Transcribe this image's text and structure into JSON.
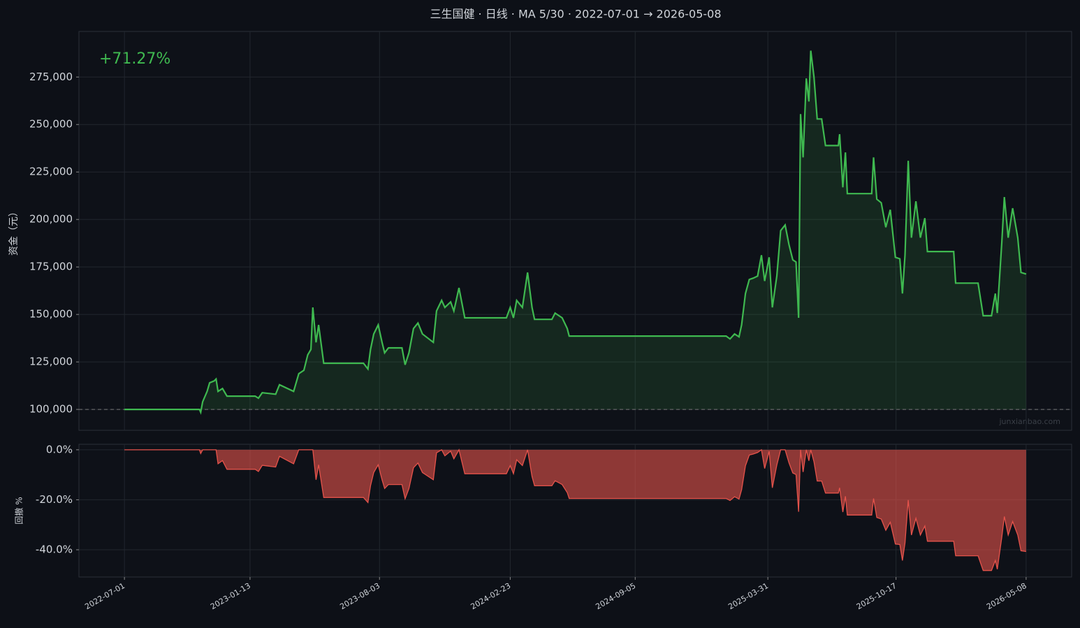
{
  "title": "三生国健 · 日线 · MA 5/30 · 2022-07-01 → 2026-05-08",
  "watermark": "junxianbao.com",
  "chart_data": [
    {
      "type": "area",
      "ylabel": "资金（元）",
      "annotation": "+71.27%",
      "color": "#3fb950",
      "baseline": 100000,
      "grid": true,
      "xlim": [
        "2022-04-21",
        "2026-07-18"
      ],
      "ylim": [
        89000,
        299000
      ],
      "yticks": [
        {
          "value": 100000,
          "label": "100,000"
        },
        {
          "value": 125000,
          "label": "125,000"
        },
        {
          "value": 150000,
          "label": "150,000"
        },
        {
          "value": 175000,
          "label": "175,000"
        },
        {
          "value": 200000,
          "label": "200,000"
        },
        {
          "value": 225000,
          "label": "225,000"
        },
        {
          "value": 250000,
          "label": "250,000"
        },
        {
          "value": 275000,
          "label": "275,000"
        }
      ],
      "x": [
        "2022-07-01",
        "2022-10-26",
        "2022-10-28",
        "2022-10-31",
        "2022-11-07",
        "2022-11-11",
        "2022-11-18",
        "2022-11-21",
        "2022-11-24",
        "2022-12-01",
        "2022-12-08",
        "2023-01-21",
        "2023-01-26",
        "2023-02-01",
        "2023-02-22",
        "2023-02-28",
        "2023-03-22",
        "2023-03-30",
        "2023-04-07",
        "2023-04-13",
        "2023-04-18",
        "2023-04-21",
        "2023-04-26",
        "2023-04-30",
        "2023-05-08",
        "2023-07-09",
        "2023-07-16",
        "2023-07-20",
        "2023-07-25",
        "2023-08-01",
        "2023-08-07",
        "2023-08-11",
        "2023-08-17",
        "2023-09-07",
        "2023-09-12",
        "2023-09-18",
        "2023-09-25",
        "2023-10-02",
        "2023-10-09",
        "2023-10-26",
        "2023-10-31",
        "2023-11-08",
        "2023-11-13",
        "2023-11-22",
        "2023-11-27",
        "2023-12-05",
        "2023-12-14",
        "2024-02-17",
        "2024-02-23",
        "2024-02-28",
        "2024-03-04",
        "2024-03-13",
        "2024-03-21",
        "2024-03-28",
        "2024-04-01",
        "2024-04-28",
        "2024-05-03",
        "2024-05-14",
        "2024-05-22",
        "2024-05-25",
        "2025-01-25",
        "2025-01-31",
        "2025-02-07",
        "2025-02-14",
        "2025-02-18",
        "2025-02-24",
        "2025-03-02",
        "2025-03-08",
        "2025-03-15",
        "2025-03-21",
        "2025-03-26",
        "2025-04-02",
        "2025-04-07",
        "2025-04-14",
        "2025-04-20",
        "2025-04-27",
        "2025-05-03",
        "2025-05-09",
        "2025-05-14",
        "2025-05-18",
        "2025-05-21",
        "2025-05-25",
        "2025-05-30",
        "2025-06-03",
        "2025-06-06",
        "2025-06-11",
        "2025-06-16",
        "2025-06-23",
        "2025-06-29",
        "2025-07-19",
        "2025-07-21",
        "2025-07-26",
        "2025-07-30",
        "2025-08-02",
        "2025-09-09",
        "2025-09-12",
        "2025-09-17",
        "2025-09-24",
        "2025-10-01",
        "2025-10-08",
        "2025-10-16",
        "2025-10-23",
        "2025-10-27",
        "2025-10-31",
        "2025-11-05",
        "2025-11-10",
        "2025-11-17",
        "2025-11-24",
        "2025-12-01",
        "2025-12-05",
        "2026-01-15",
        "2026-01-18",
        "2026-02-22",
        "2026-03-02",
        "2026-03-15",
        "2026-03-21",
        "2026-03-24",
        "2026-03-31",
        "2026-04-04",
        "2026-04-10",
        "2026-04-17",
        "2026-04-25",
        "2026-04-30",
        "2026-05-08"
      ],
      "values": [
        100000,
        100000,
        98500,
        104000,
        109500,
        114000,
        115000,
        116000,
        109500,
        111000,
        107000,
        107000,
        105900,
        108800,
        108000,
        113000,
        109500,
        118800,
        120600,
        128700,
        131600,
        153700,
        135300,
        144500,
        124300,
        124300,
        121300,
        131600,
        139700,
        144500,
        135300,
        129800,
        132400,
        132400,
        123500,
        129800,
        142600,
        145500,
        139700,
        135300,
        151800,
        157400,
        153700,
        156600,
        151800,
        164000,
        148200,
        148200,
        153700,
        148200,
        157400,
        153700,
        172100,
        153700,
        147400,
        147400,
        150700,
        148200,
        142600,
        138600,
        138600,
        137100,
        139700,
        138200,
        144500,
        161000,
        168400,
        169100,
        170200,
        181200,
        167600,
        180100,
        153700,
        170200,
        194100,
        197100,
        186800,
        178700,
        177600,
        148200,
        255500,
        232700,
        274300,
        262100,
        288900,
        275000,
        252900,
        252900,
        238900,
        238900,
        244900,
        216900,
        235300,
        213600,
        213600,
        232700,
        210700,
        208800,
        195900,
        205100,
        180100,
        179300,
        161000,
        181200,
        230900,
        190400,
        209600,
        190400,
        200700,
        183100,
        183100,
        166500,
        166500,
        149300,
        149300,
        161000,
        150700,
        187500,
        211800,
        190400,
        205900,
        190400,
        172100,
        171270
      ]
    },
    {
      "type": "area",
      "ylabel": "回撤 %",
      "color": "#e5534b",
      "grid": true,
      "xlim": [
        "2022-04-21",
        "2026-07-18"
      ],
      "ylim": [
        -50.9,
        2.2
      ],
      "yticks": [
        {
          "value": 0,
          "label": "0.0%"
        },
        {
          "value": -20,
          "label": "-20.0%"
        },
        {
          "value": -40,
          "label": "-40.0%"
        }
      ],
      "xticks": [
        "2022-07-01",
        "2023-01-13",
        "2023-08-03",
        "2024-02-23",
        "2024-09-05",
        "2025-03-31",
        "2025-10-17",
        "2026-05-08"
      ],
      "x": [
        "2022-07-01",
        "2022-10-26",
        "2022-10-28",
        "2022-10-31",
        "2022-11-07",
        "2022-11-11",
        "2022-11-18",
        "2022-11-21",
        "2022-11-24",
        "2022-12-01",
        "2022-12-08",
        "2023-01-21",
        "2023-01-26",
        "2023-02-01",
        "2023-02-22",
        "2023-02-28",
        "2023-03-22",
        "2023-03-30",
        "2023-04-07",
        "2023-04-13",
        "2023-04-18",
        "2023-04-21",
        "2023-04-26",
        "2023-04-30",
        "2023-05-08",
        "2023-07-09",
        "2023-07-16",
        "2023-07-20",
        "2023-07-25",
        "2023-08-01",
        "2023-08-07",
        "2023-08-11",
        "2023-08-17",
        "2023-09-07",
        "2023-09-12",
        "2023-09-18",
        "2023-09-25",
        "2023-10-02",
        "2023-10-09",
        "2023-10-26",
        "2023-10-31",
        "2023-11-08",
        "2023-11-13",
        "2023-11-22",
        "2023-11-27",
        "2023-12-05",
        "2023-12-14",
        "2024-02-17",
        "2024-02-23",
        "2024-02-28",
        "2024-03-04",
        "2024-03-13",
        "2024-03-21",
        "2024-03-28",
        "2024-04-01",
        "2024-04-28",
        "2024-05-03",
        "2024-05-14",
        "2024-05-22",
        "2024-05-25",
        "2025-01-25",
        "2025-01-31",
        "2025-02-07",
        "2025-02-14",
        "2025-02-18",
        "2025-02-24",
        "2025-03-02",
        "2025-03-08",
        "2025-03-15",
        "2025-03-21",
        "2025-03-26",
        "2025-04-02",
        "2025-04-07",
        "2025-04-14",
        "2025-04-20",
        "2025-04-27",
        "2025-05-03",
        "2025-05-09",
        "2025-05-14",
        "2025-05-18",
        "2025-05-21",
        "2025-05-25",
        "2025-05-30",
        "2025-06-03",
        "2025-06-06",
        "2025-06-11",
        "2025-06-16",
        "2025-06-23",
        "2025-06-29",
        "2025-07-19",
        "2025-07-21",
        "2025-07-26",
        "2025-07-30",
        "2025-08-02",
        "2025-09-09",
        "2025-09-12",
        "2025-09-17",
        "2025-09-24",
        "2025-10-01",
        "2025-10-08",
        "2025-10-16",
        "2025-10-23",
        "2025-10-27",
        "2025-10-31",
        "2025-11-05",
        "2025-11-10",
        "2025-11-17",
        "2025-11-24",
        "2025-12-01",
        "2025-12-05",
        "2026-01-15",
        "2026-01-18",
        "2026-02-22",
        "2026-03-02",
        "2026-03-15",
        "2026-03-21",
        "2026-03-24",
        "2026-03-31",
        "2026-04-04",
        "2026-04-10",
        "2026-04-17",
        "2026-04-25",
        "2026-04-30",
        "2026-05-08"
      ],
      "values": [
        0,
        0,
        -1.5,
        0,
        0,
        0,
        0,
        0,
        -5.6,
        -4.3,
        -7.8,
        -7.8,
        -8.7,
        -6.2,
        -6.9,
        -2.6,
        -5.6,
        0,
        0,
        0,
        0,
        0,
        -12.0,
        -6.0,
        -19.1,
        -19.1,
        -21.1,
        -14.4,
        -9.1,
        -6.0,
        -12.0,
        -15.5,
        -13.9,
        -13.9,
        -19.6,
        -15.5,
        -7.2,
        -5.3,
        -9.1,
        -12.0,
        -1.2,
        0,
        -2.4,
        -0.5,
        -3.6,
        0,
        -9.6,
        -9.6,
        -6.3,
        -9.6,
        -4.0,
        -6.3,
        0,
        -10.7,
        -14.4,
        -14.4,
        -12.4,
        -13.9,
        -17.1,
        -19.5,
        -19.5,
        -20.3,
        -18.8,
        -19.7,
        -16.0,
        -6.4,
        -2.1,
        -1.7,
        -1.1,
        0,
        -7.5,
        -0.6,
        -15.2,
        -6.1,
        0,
        0,
        -5.2,
        -9.3,
        -9.9,
        -24.8,
        0,
        -8.9,
        0,
        -4.4,
        0,
        -4.8,
        -12.5,
        -12.5,
        -17.3,
        -17.3,
        -15.2,
        -24.9,
        -18.6,
        -26.1,
        -26.1,
        -19.5,
        -27.1,
        -27.7,
        -32.2,
        -29.0,
        -37.7,
        -37.9,
        -44.3,
        -37.3,
        -20.1,
        -34.1,
        -27.4,
        -34.1,
        -30.5,
        -36.6,
        -36.6,
        -42.4,
        -42.4,
        -48.3,
        -48.3,
        -44.3,
        -47.8,
        -35.1,
        -26.7,
        -34.1,
        -28.7,
        -34.1,
        -40.4,
        -40.7
      ]
    }
  ]
}
